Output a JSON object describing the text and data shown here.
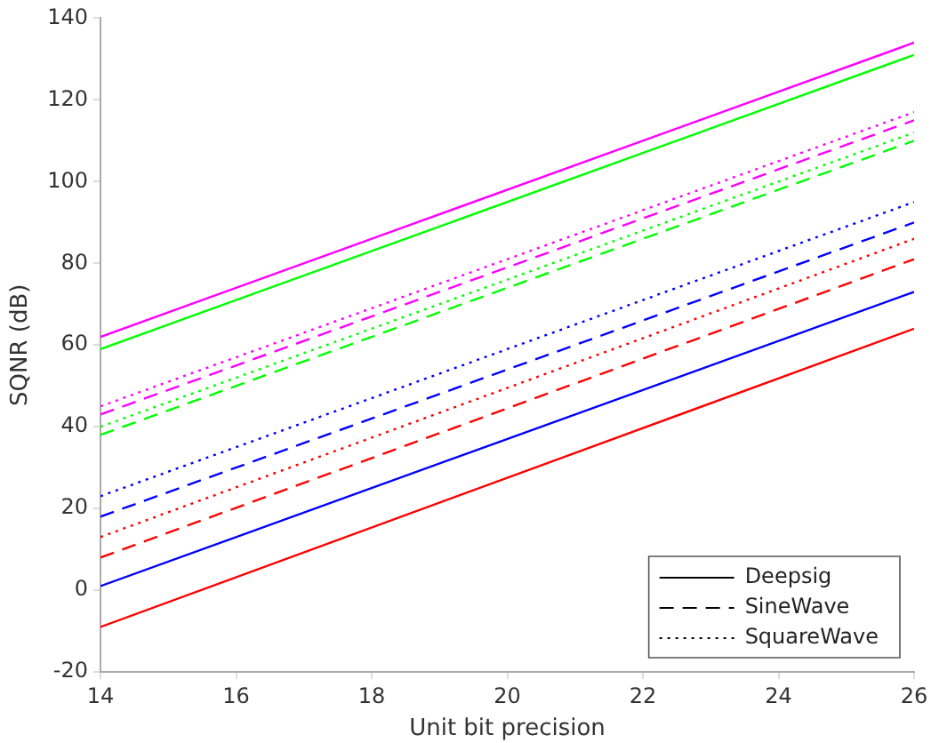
{
  "chart_data": {
    "type": "line",
    "xlabel": "Unit bit precision",
    "ylabel": "SQNR (dB)",
    "x": [
      14,
      26
    ],
    "xlim": [
      14,
      26
    ],
    "xticks": [
      14,
      16,
      18,
      20,
      22,
      24,
      26
    ],
    "ylim": [
      -20,
      140
    ],
    "yticks": [
      -20,
      0,
      20,
      40,
      60,
      80,
      100,
      120,
      140
    ],
    "grid": false,
    "legend": "bottom right",
    "marker": "none",
    "series": [
      {
        "color": "#ff0000",
        "line_style": "solid",
        "values": [
          -9,
          64
        ]
      },
      {
        "color": "#0000ff",
        "line_style": "solid",
        "values": [
          1,
          73
        ]
      },
      {
        "color": "#00ff00",
        "line_style": "solid",
        "values": [
          59,
          131
        ]
      },
      {
        "color": "#ff00ff",
        "line_style": "solid",
        "values": [
          62,
          134
        ]
      },
      {
        "color": "#ff0000",
        "line_style": "dashed",
        "values": [
          8,
          81
        ]
      },
      {
        "color": "#0000ff",
        "line_style": "dashed",
        "values": [
          18,
          90
        ]
      },
      {
        "color": "#00ff00",
        "line_style": "dashed",
        "values": [
          38,
          110
        ]
      },
      {
        "color": "#ff00ff",
        "line_style": "dashed",
        "values": [
          43,
          115
        ]
      },
      {
        "color": "#ff0000",
        "line_style": "dotted",
        "values": [
          13,
          86
        ]
      },
      {
        "color": "#0000ff",
        "line_style": "dotted",
        "values": [
          23,
          95
        ]
      },
      {
        "color": "#00ff00",
        "line_style": "dotted",
        "values": [
          40,
          112
        ]
      },
      {
        "color": "#ff00ff",
        "line_style": "dotted",
        "values": [
          45,
          117
        ]
      },
      {
        "name": "Deepsig",
        "color": "#000000",
        "line_style": "solid",
        "values": [
          null,
          null
        ]
      },
      {
        "name": "SineWave",
        "color": "#000000",
        "line_style": "dashed",
        "values": [
          null,
          null
        ]
      },
      {
        "name": "SquareWave",
        "color": "#000000",
        "line_style": "dotted",
        "values": [
          null,
          null
        ]
      }
    ]
  }
}
